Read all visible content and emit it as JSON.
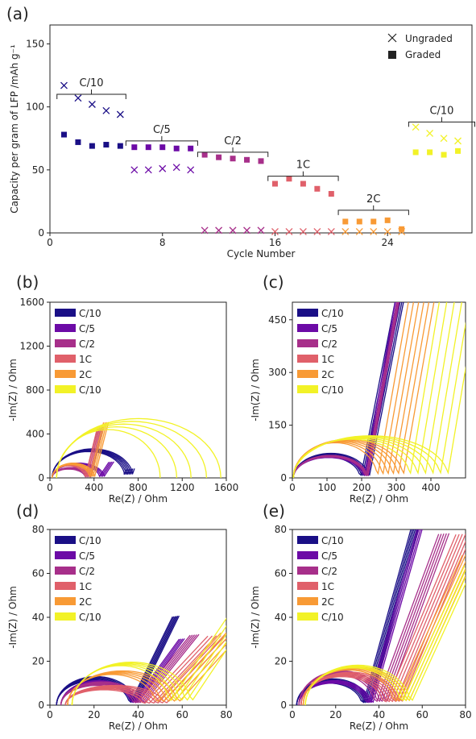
{
  "colors": {
    "C10": "#1a0f86",
    "C5": "#6c0aa6",
    "C2": "#a72f8a",
    "1C": "#e0606a",
    "2C": "#f89a35",
    "C10b": "#f2f227"
  },
  "legend_labels": [
    "C/10",
    "C/5",
    "C/2",
    "1C",
    "2C",
    "C/10"
  ],
  "chart_data": [
    {
      "panel": "(a)",
      "type": "scatter",
      "xlabel": "Cycle Number",
      "ylabel": "Capacity per gram of LFP /mAh g⁻¹",
      "xlim": [
        0,
        30
      ],
      "ylim": [
        0,
        165
      ],
      "xticks": [
        0,
        8,
        16,
        24
      ],
      "yticks": [
        0,
        50,
        100,
        150
      ],
      "legend": [
        "Ungraded",
        "Graded"
      ],
      "legend_position": "top-right",
      "series": [
        {
          "name": "Ungraded",
          "marker": "x",
          "x": [
            1,
            2,
            3,
            4,
            5,
            6,
            7,
            8,
            9,
            10,
            11,
            12,
            13,
            14,
            15,
            16,
            17,
            18,
            19,
            20,
            21,
            22,
            23,
            24,
            25,
            26,
            27,
            28,
            29
          ],
          "y": [
            117,
            107,
            102,
            97,
            94,
            50,
            50,
            51,
            52,
            50,
            2,
            2,
            2,
            2,
            2,
            1,
            1,
            1,
            1,
            1,
            1,
            1,
            1,
            1,
            1,
            84,
            79,
            75,
            73
          ]
        },
        {
          "name": "Graded",
          "marker": "square",
          "x": [
            1,
            2,
            3,
            4,
            5,
            6,
            7,
            8,
            9,
            10,
            11,
            12,
            13,
            14,
            15,
            16,
            17,
            18,
            19,
            20,
            21,
            22,
            23,
            24,
            25,
            26,
            27,
            28,
            29
          ],
          "y": [
            78,
            72,
            69,
            70,
            69,
            68,
            68,
            68,
            67,
            67,
            62,
            60,
            59,
            58,
            57,
            39,
            43,
            39,
            35,
            31,
            9,
            9,
            9,
            10,
            3,
            64,
            64,
            62,
            65
          ]
        }
      ],
      "annotations": [
        {
          "text": "C/10",
          "x1": 0.5,
          "x2": 5.4,
          "y": 110
        },
        {
          "text": "C/5",
          "x1": 5.4,
          "x2": 10.5,
          "y": 73
        },
        {
          "text": "C/2",
          "x1": 10.5,
          "x2": 15.5,
          "y": 64
        },
        {
          "text": "1C",
          "x1": 15.5,
          "x2": 20.5,
          "y": 45
        },
        {
          "text": "2C",
          "x1": 20.5,
          "x2": 25.5,
          "y": 18
        },
        {
          "text": "C/10",
          "x1": 25.5,
          "x2": 30.2,
          "y": 88
        }
      ]
    },
    {
      "panel": "(b)",
      "type": "line",
      "xlabel": "Re(Z) / Ohm",
      "ylabel": "-Im(Z) / Ohm",
      "xlim": [
        0,
        1600
      ],
      "ylim": [
        0,
        1600
      ],
      "xticks": [
        0,
        400,
        800,
        1200,
        1600
      ],
      "yticks": [
        0,
        400,
        800,
        1200,
        1600
      ],
      "legend_position": "top-left"
    },
    {
      "panel": "(c)",
      "type": "line",
      "xlabel": "Re(Z) / Ohm",
      "ylabel": "-Im(Z) / Ohm",
      "xlim": [
        0,
        500
      ],
      "ylim": [
        0,
        500
      ],
      "xticks": [
        0,
        100,
        200,
        300,
        400
      ],
      "yticks": [
        0,
        150,
        300,
        450
      ],
      "legend_position": "top-left"
    },
    {
      "panel": "(d)",
      "type": "line",
      "xlabel": "Re(Z) / Ohm",
      "ylabel": "-Im(Z) / Ohm",
      "xlim": [
        0,
        80
      ],
      "ylim": [
        0,
        80
      ],
      "xticks": [
        0,
        20,
        40,
        60,
        80
      ],
      "yticks": [
        0,
        20,
        40,
        60,
        80
      ],
      "legend_position": "top-left"
    },
    {
      "panel": "(e)",
      "type": "line",
      "xlabel": "Re(Z) / Ohm",
      "ylabel": "-Im(Z) / Ohm",
      "xlim": [
        0,
        80
      ],
      "ylim": [
        0,
        80
      ],
      "xticks": [
        0,
        20,
        40,
        60,
        80
      ],
      "yticks": [
        0,
        20,
        40,
        60,
        80
      ],
      "legend_position": "top-left"
    }
  ]
}
